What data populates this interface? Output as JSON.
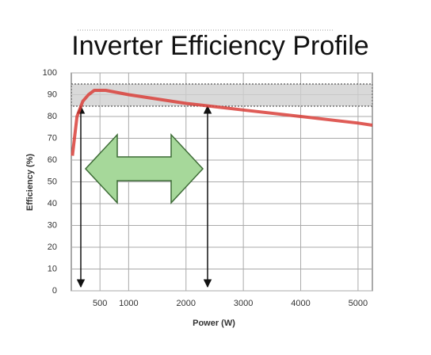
{
  "chart_data": {
    "type": "line",
    "title": "Inverter Efficiency Profile",
    "x_label": "Power (W)",
    "y_label": "Efficiency (%)",
    "x": [
      20,
      100,
      200,
      300,
      400,
      600,
      1000,
      1500,
      2000,
      2500,
      3000,
      4000,
      5000,
      5250
    ],
    "values": [
      62,
      80,
      87,
      90,
      92,
      92,
      90,
      88,
      86,
      84.5,
      83,
      80,
      77,
      76
    ],
    "color": "#d9403a",
    "xlim": [
      0,
      5250
    ],
    "ylim": [
      0,
      100
    ],
    "xticks": [
      500,
      1000,
      2000,
      3000,
      4000,
      5000
    ],
    "yticks": [
      0,
      10,
      20,
      30,
      40,
      50,
      60,
      70,
      80,
      90,
      100
    ],
    "grid": true
  }
}
